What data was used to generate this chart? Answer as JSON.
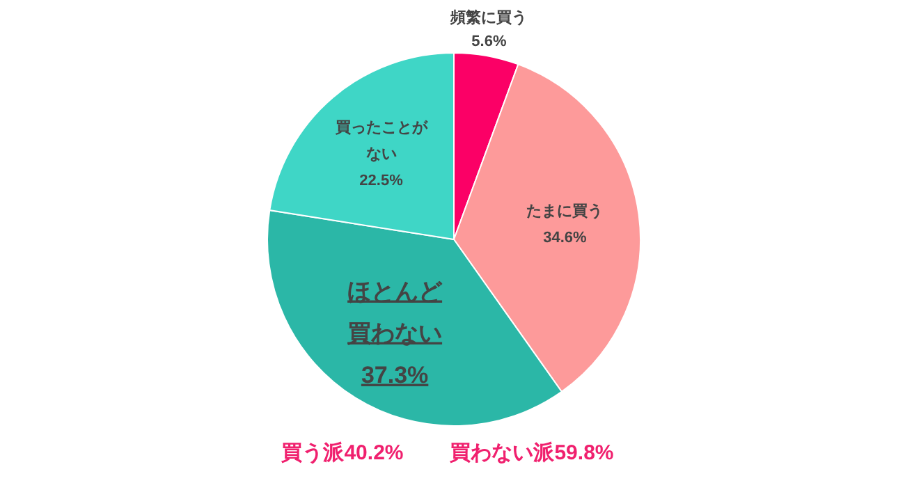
{
  "chart_data": {
    "type": "pie",
    "categories": [
      "頻繁に買う",
      "たまに買う",
      "ほとんど買わない",
      "買ったことがない"
    ],
    "values": [
      5.6,
      34.6,
      37.3,
      22.5
    ],
    "value_labels": [
      "5.6%",
      "34.6%",
      "37.3%",
      "22.5%"
    ],
    "colors": [
      "#fb0066",
      "#fd9a9a",
      "#2bb7a7",
      "#3fd6c6"
    ],
    "annotations": [
      "買う派40.2%",
      "買わない派59.8%"
    ]
  }
}
